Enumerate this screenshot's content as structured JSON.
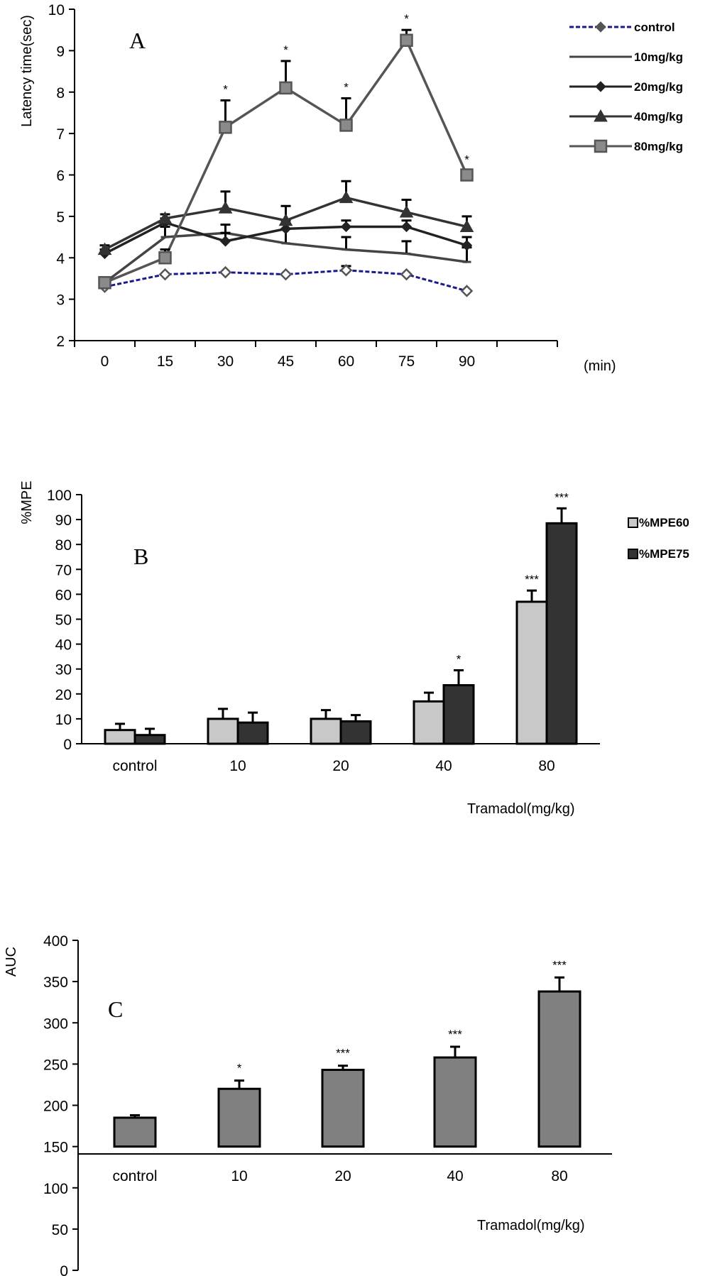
{
  "chart_data": [
    {
      "panel": "A",
      "type": "line",
      "xlabel": "(min)",
      "ylabel": "Latency time(sec)",
      "categories": [
        "0",
        "15",
        "30",
        "45",
        "60",
        "75",
        "90"
      ],
      "ylim": [
        2,
        10
      ],
      "yticks": [
        "2",
        "3",
        "4",
        "5",
        "6",
        "7",
        "8",
        "9",
        "10"
      ],
      "legend_position": "top-right",
      "series": [
        {
          "name": "control",
          "color": "#1a1a8c",
          "marker": "diamond-open",
          "values": [
            3.3,
            3.6,
            3.65,
            3.6,
            3.7,
            3.6,
            3.2
          ],
          "errors": [
            0.05,
            0.05,
            0.05,
            0.05,
            0.1,
            0.05,
            0.05
          ]
        },
        {
          "name": "10mg/kg",
          "color": "#444444",
          "marker": "dash",
          "values": [
            3.4,
            4.5,
            4.6,
            4.35,
            4.2,
            4.1,
            3.9
          ],
          "errors": [
            0.1,
            0.25,
            0.2,
            0.35,
            0.3,
            0.3,
            0.35
          ]
        },
        {
          "name": "20mg/kg",
          "color": "#222222",
          "marker": "diamond",
          "values": [
            4.1,
            4.85,
            4.4,
            4.7,
            4.75,
            4.75,
            4.3
          ],
          "errors": [
            0.1,
            0.1,
            0.2,
            0.2,
            0.15,
            0.15,
            0.2
          ]
        },
        {
          "name": "40mg/kg",
          "color": "#333333",
          "marker": "triangle",
          "values": [
            4.2,
            4.95,
            5.2,
            4.9,
            5.45,
            5.1,
            4.75
          ],
          "errors": [
            0.1,
            0.1,
            0.4,
            0.35,
            0.4,
            0.3,
            0.25
          ]
        },
        {
          "name": "80mg/kg",
          "color": "#555555",
          "marker": "square",
          "values": [
            3.4,
            4.0,
            7.15,
            8.1,
            7.2,
            9.25,
            6.0
          ],
          "errors": [
            0.1,
            0.2,
            0.65,
            0.65,
            0.65,
            0.25,
            0.1
          ]
        }
      ],
      "annotations": [
        {
          "x": "30",
          "text": "*"
        },
        {
          "x": "45",
          "text": "*"
        },
        {
          "x": "60",
          "text": "*"
        },
        {
          "x": "75",
          "text": "*"
        },
        {
          "x": "90",
          "text": "*"
        }
      ]
    },
    {
      "panel": "B",
      "type": "bar",
      "xlabel": "Tramadol(mg/kg)",
      "ylabel": "%MPE",
      "categories": [
        "control",
        "10",
        "20",
        "40",
        "80"
      ],
      "ylim": [
        0,
        100
      ],
      "yticks": [
        "0",
        "10",
        "20",
        "30",
        "40",
        "50",
        "60",
        "70",
        "80",
        "90",
        "100"
      ],
      "legend_position": "top-right",
      "series": [
        {
          "name": "%MPE60",
          "color": "#c8c8c8",
          "values": [
            5.5,
            10,
            10,
            17,
            57
          ],
          "errors": [
            2.5,
            4,
            3.5,
            3.5,
            4.5
          ]
        },
        {
          "name": "%MPE75",
          "color": "#333333",
          "values": [
            3.5,
            8.5,
            9,
            23.5,
            88.5
          ],
          "errors": [
            2.5,
            4,
            2.5,
            6,
            6
          ]
        }
      ],
      "annotations": [
        {
          "category": "40",
          "series": "%MPE75",
          "text": "*"
        },
        {
          "category": "80",
          "series": "%MPE60",
          "text": "***"
        },
        {
          "category": "80",
          "series": "%MPE75",
          "text": "***"
        }
      ]
    },
    {
      "panel": "C",
      "type": "bar",
      "xlabel": "Tramadol(mg/kg)",
      "ylabel": "AUC",
      "categories": [
        "control",
        "10",
        "20",
        "40",
        "80"
      ],
      "ylim": [
        0,
        400
      ],
      "baseline": 150,
      "yticks": [
        "0",
        "50",
        "100",
        "150",
        "200",
        "250",
        "300",
        "350",
        "400"
      ],
      "series": [
        {
          "color": "#808080",
          "values": [
            185,
            220,
            243,
            258,
            338
          ],
          "errors": [
            3,
            10,
            5,
            13,
            17
          ]
        }
      ],
      "annotations": [
        {
          "category": "10",
          "text": "*"
        },
        {
          "category": "20",
          "text": "***"
        },
        {
          "category": "40",
          "text": "***"
        },
        {
          "category": "80",
          "text": "***"
        }
      ]
    }
  ]
}
